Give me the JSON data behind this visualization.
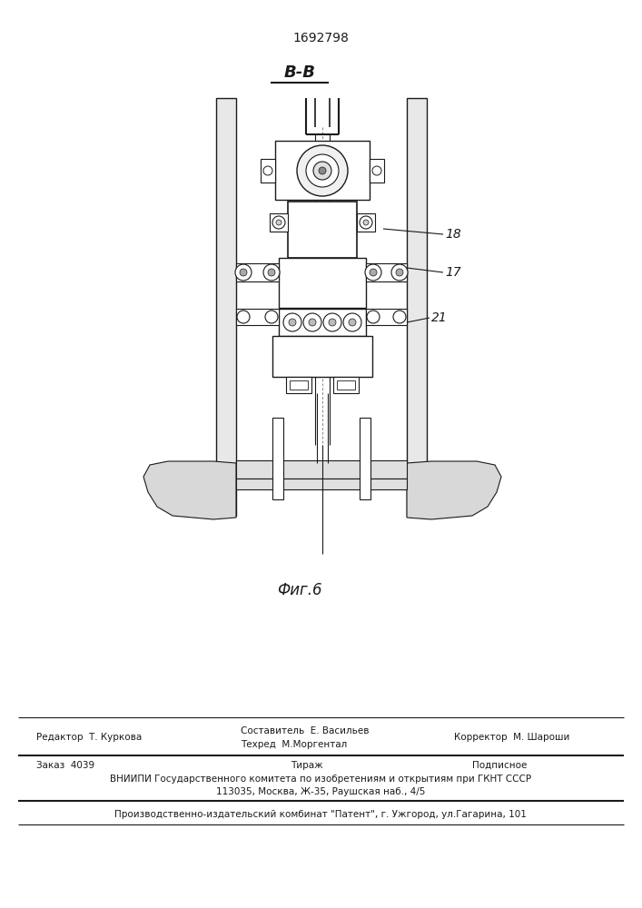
{
  "patent_number": "1692798",
  "view_label": "В-В",
  "fig_label": "Фиг.6",
  "bg_color": "#ffffff",
  "line_color": "#1a1a1a",
  "footer": {
    "editor": "Редактор  Т. Куркова",
    "composer_techred": "Составитель  Е. Васильев\nТехред  М.Моргентал",
    "corrector": "Корректор  М. Шароши",
    "order": "Заказ  4039",
    "tirazh": "Тираж",
    "podpisnoe": "Подписное",
    "vniipи": "ВНИИПИ Государственного комитета по изобретениям и открытиям при ГКНТ СССР",
    "address": "113035, Москва, Ж-35, Раушская наб., 4/5",
    "patent": "Производственно-издательский комбинат \"Патент\", г. Ужгород, ул.Гагарина, 101"
  }
}
